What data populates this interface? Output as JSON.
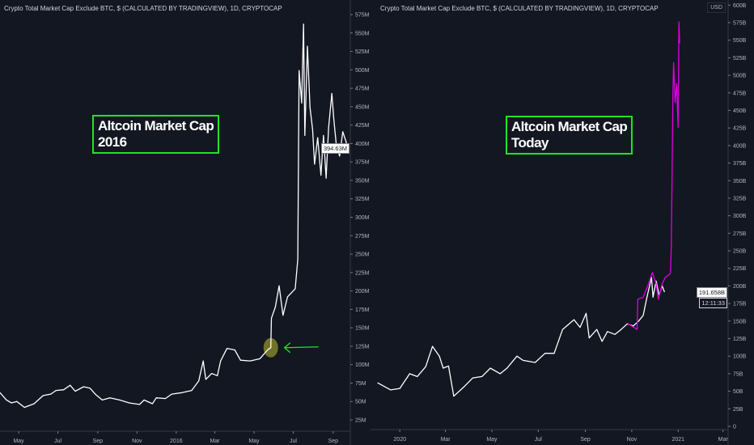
{
  "colors": {
    "background": "#131722",
    "axis_text": "#b2b5be",
    "line": "#ffffff",
    "overlay": "#e000e0",
    "annotation_box": "#1ee61e",
    "arrow": "#1ee61e",
    "highlight": "#8a8a2a"
  },
  "chart_data": [
    {
      "type": "line",
      "title": "Crypto Total Market Cap Exclude BTC, $ (CALCULATED BY TRADINGVIEW), 1D, CRYPTOCAP",
      "annotation": "Altcoin Market Cap\n2016",
      "y_unit": "M",
      "ylim": [
        0,
        600
      ],
      "xlim": [
        "2015-04-02",
        "2016-10-05"
      ],
      "y_ticks": [
        "25M",
        "50M",
        "75M",
        "100M",
        "125M",
        "150M",
        "175M",
        "200M",
        "225M",
        "250M",
        "275M",
        "300M",
        "325M",
        "350M",
        "375M",
        "400M",
        "425M",
        "450M",
        "475M",
        "500M",
        "525M",
        "550M",
        "575M"
      ],
      "x_ticks": [
        [
          "2015-05-01",
          "May"
        ],
        [
          "2015-07-01",
          "Jul"
        ],
        [
          "2015-09-01",
          "Sep"
        ],
        [
          "2015-11-01",
          "Nov"
        ],
        [
          "2016-01-01",
          "2016"
        ],
        [
          "2016-03-01",
          "Mar"
        ],
        [
          "2016-05-01",
          "May"
        ],
        [
          "2016-07-01",
          "Jul"
        ],
        [
          "2016-09-01",
          "Sep"
        ]
      ],
      "last_value_label": "394.63M",
      "last_value": 394.63,
      "highlight_point": [
        "2016-05-27",
        123
      ],
      "series": [
        {
          "color": "#ffffff",
          "points": [
            [
              "2015-04-02",
              62
            ],
            [
              "2015-04-12",
              52
            ],
            [
              "2015-04-20",
              48
            ],
            [
              "2015-04-28",
              50
            ],
            [
              "2015-05-10",
              42
            ],
            [
              "2015-05-25",
              47
            ],
            [
              "2015-06-08",
              58
            ],
            [
              "2015-06-20",
              60
            ],
            [
              "2015-06-28",
              65
            ],
            [
              "2015-07-10",
              66
            ],
            [
              "2015-07-20",
              72
            ],
            [
              "2015-07-28",
              64
            ],
            [
              "2015-08-10",
              70
            ],
            [
              "2015-08-20",
              68
            ],
            [
              "2015-08-28",
              60
            ],
            [
              "2015-09-08",
              52
            ],
            [
              "2015-09-20",
              55
            ],
            [
              "2015-10-05",
              52
            ],
            [
              "2015-10-20",
              48
            ],
            [
              "2015-11-05",
              46
            ],
            [
              "2015-11-12",
              52
            ],
            [
              "2015-11-25",
              47
            ],
            [
              "2015-12-01",
              55
            ],
            [
              "2015-12-15",
              54
            ],
            [
              "2015-12-25",
              60
            ],
            [
              "2016-01-10",
              62
            ],
            [
              "2016-01-25",
              65
            ],
            [
              "2016-02-05",
              78
            ],
            [
              "2016-02-12",
              105
            ],
            [
              "2016-02-16",
              80
            ],
            [
              "2016-02-25",
              88
            ],
            [
              "2016-03-05",
              85
            ],
            [
              "2016-03-10",
              105
            ],
            [
              "2016-03-20",
              122
            ],
            [
              "2016-04-01",
              120
            ],
            [
              "2016-04-10",
              106
            ],
            [
              "2016-04-25",
              105
            ],
            [
              "2016-05-10",
              108
            ],
            [
              "2016-05-22",
              120
            ],
            [
              "2016-05-27",
              123
            ],
            [
              "2016-05-28",
              163
            ],
            [
              "2016-06-03",
              178
            ],
            [
              "2016-06-09",
              207
            ],
            [
              "2016-06-15",
              167
            ],
            [
              "2016-06-22",
              192
            ],
            [
              "2016-07-04",
              203
            ],
            [
              "2016-07-08",
              243
            ],
            [
              "2016-07-10",
              499
            ],
            [
              "2016-07-14",
              455
            ],
            [
              "2016-07-17",
              562
            ],
            [
              "2016-07-19",
              411
            ],
            [
              "2016-07-23",
              532
            ],
            [
              "2016-07-27",
              449
            ],
            [
              "2016-07-31",
              419
            ],
            [
              "2016-08-03",
              372
            ],
            [
              "2016-08-08",
              408
            ],
            [
              "2016-08-13",
              357
            ],
            [
              "2016-08-17",
              411
            ],
            [
              "2016-08-21",
              353
            ],
            [
              "2016-08-25",
              422
            ],
            [
              "2016-08-30",
              468
            ],
            [
              "2016-09-02",
              433
            ],
            [
              "2016-09-06",
              397
            ],
            [
              "2016-09-11",
              383
            ],
            [
              "2016-09-16",
              416
            ],
            [
              "2016-09-24",
              394.63
            ]
          ]
        }
      ]
    },
    {
      "type": "line",
      "title": "Crypto Total Market Cap Exclude BTC, $ (CALCULATED BY TRADINGVIEW), 1D, CRYPTOCAP",
      "annotation": "Altcoin Market Cap\nToday",
      "y_unit": "B",
      "currency_label": "USD",
      "ylim": [
        0,
        600
      ],
      "xlim": [
        "2019-12-02",
        "2021-03-05"
      ],
      "y_ticks": [
        "0",
        "25B",
        "50B",
        "75B",
        "100B",
        "125B",
        "150B",
        "175B",
        "200B",
        "225B",
        "250B",
        "275B",
        "300B",
        "325B",
        "350B",
        "375B",
        "400B",
        "425B",
        "450B",
        "475B",
        "500B",
        "525B",
        "550B",
        "575B",
        "600B"
      ],
      "x_ticks": [
        [
          "2020-01-01",
          "2020"
        ],
        [
          "2020-03-01",
          "Mar"
        ],
        [
          "2020-05-01",
          "May"
        ],
        [
          "2020-07-01",
          "Jul"
        ],
        [
          "2020-09-01",
          "Sep"
        ],
        [
          "2020-11-01",
          "Nov"
        ],
        [
          "2021-01-01",
          "2021"
        ],
        [
          "2021-03-01",
          "Mar"
        ]
      ],
      "last_value_label": "191.658B",
      "last_value": 191.658,
      "countdown_label": "12:11:33",
      "series": [
        {
          "color": "#ffffff",
          "points": [
            [
              "2019-12-03",
              62
            ],
            [
              "2019-12-20",
              52
            ],
            [
              "2020-01-01",
              54
            ],
            [
              "2020-01-14",
              75
            ],
            [
              "2020-01-24",
              71
            ],
            [
              "2020-02-04",
              85
            ],
            [
              "2020-02-13",
              114
            ],
            [
              "2020-02-22",
              100
            ],
            [
              "2020-02-27",
              83
            ],
            [
              "2020-03-05",
              86
            ],
            [
              "2020-03-12",
              43
            ],
            [
              "2020-03-25",
              56
            ],
            [
              "2020-04-06",
              69
            ],
            [
              "2020-04-18",
              71
            ],
            [
              "2020-04-29",
              83
            ],
            [
              "2020-05-12",
              75
            ],
            [
              "2020-05-21",
              83
            ],
            [
              "2020-06-03",
              100
            ],
            [
              "2020-06-11",
              94
            ],
            [
              "2020-06-27",
              91
            ],
            [
              "2020-07-10",
              104
            ],
            [
              "2020-07-22",
              104
            ],
            [
              "2020-08-02",
              138
            ],
            [
              "2020-08-17",
              152
            ],
            [
              "2020-08-25",
              141
            ],
            [
              "2020-09-02",
              161
            ],
            [
              "2020-09-06",
              126
            ],
            [
              "2020-09-16",
              138
            ],
            [
              "2020-09-23",
              121
            ],
            [
              "2020-09-30",
              135
            ],
            [
              "2020-10-10",
              131
            ],
            [
              "2020-10-18",
              138
            ],
            [
              "2020-10-26",
              146
            ],
            [
              "2020-11-03",
              143
            ],
            [
              "2020-11-10",
              150
            ],
            [
              "2020-11-16",
              158
            ],
            [
              "2020-11-21",
              184
            ],
            [
              "2020-11-27",
              212
            ],
            [
              "2020-11-29",
              184
            ],
            [
              "2020-12-03",
              207
            ],
            [
              "2020-12-07",
              187
            ],
            [
              "2020-12-11",
              200
            ],
            [
              "2020-12-14",
              191.658
            ]
          ]
        },
        {
          "color": "#e000e0",
          "points": [
            [
              "2020-10-26",
              147
            ],
            [
              "2020-11-08",
              138
            ],
            [
              "2020-11-09",
              181
            ],
            [
              "2020-11-16",
              184
            ],
            [
              "2020-11-22",
              200
            ],
            [
              "2020-11-28",
              219
            ],
            [
              "2020-12-03",
              203
            ],
            [
              "2020-12-06",
              181
            ],
            [
              "2020-12-11",
              203
            ],
            [
              "2020-12-15",
              212
            ],
            [
              "2020-12-21",
              217
            ],
            [
              "2020-12-22",
              219
            ],
            [
              "2020-12-23",
              258
            ],
            [
              "2020-12-24",
              354
            ],
            [
              "2020-12-25",
              469
            ],
            [
              "2020-12-26",
              518
            ],
            [
              "2020-12-28",
              461
            ],
            [
              "2020-12-30",
              488
            ],
            [
              "2021-01-01",
              426
            ],
            [
              "2021-01-02",
              576
            ],
            [
              "2021-01-03",
              546
            ]
          ]
        }
      ]
    }
  ]
}
